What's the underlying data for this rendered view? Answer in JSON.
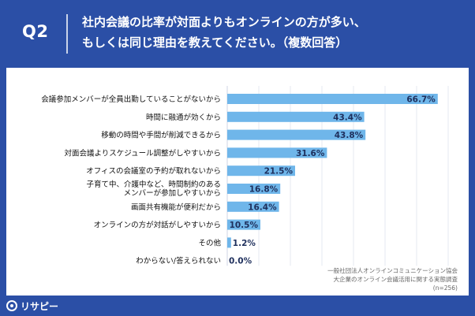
{
  "header": {
    "qnum": "Q2",
    "title_line1": "社内会議の比率が対面よりもオンラインの方が多い、",
    "title_line2": "もしくは同じ理由を教えてください。（複数回答）"
  },
  "colors": {
    "header_bg": "#2b4fa6",
    "bar": "#6fb6ea",
    "card_bg": "#ffffff"
  },
  "chart_data": {
    "type": "bar",
    "orientation": "horizontal",
    "categories": [
      "会議参加メンバーが全員出勤していることがないから",
      "時間に融通が効くから",
      "移動の時間や手間が削減できるから",
      "対面会議よりスケジュール調整がしやすいから",
      "オフィスの会議室の予約が取れないから",
      "子育て中、介護中など、時間制約のある\nメンバーが参加しやすいから",
      "画面共有機能が便利だから",
      "オンラインの方が対話がしやすいから",
      "その他",
      "わからない/答えられない"
    ],
    "values": [
      66.7,
      43.4,
      43.8,
      31.6,
      21.5,
      16.8,
      16.4,
      10.5,
      1.2,
      0.0
    ],
    "value_labels": [
      "66.7%",
      "43.4%",
      "43.8%",
      "31.6%",
      "21.5%",
      "16.8%",
      "16.4%",
      "10.5%",
      "1.2%",
      "0.0%"
    ],
    "xlim": [
      0,
      70
    ],
    "grid": true,
    "legend": "none"
  },
  "source": {
    "line1": "一般社団法人オンラインコミュニケーション協会",
    "line2": "大企業のオンライン会議活用に関する実態調査",
    "line3": "(n=256)"
  },
  "footer": {
    "logo_text": "リサピー"
  }
}
